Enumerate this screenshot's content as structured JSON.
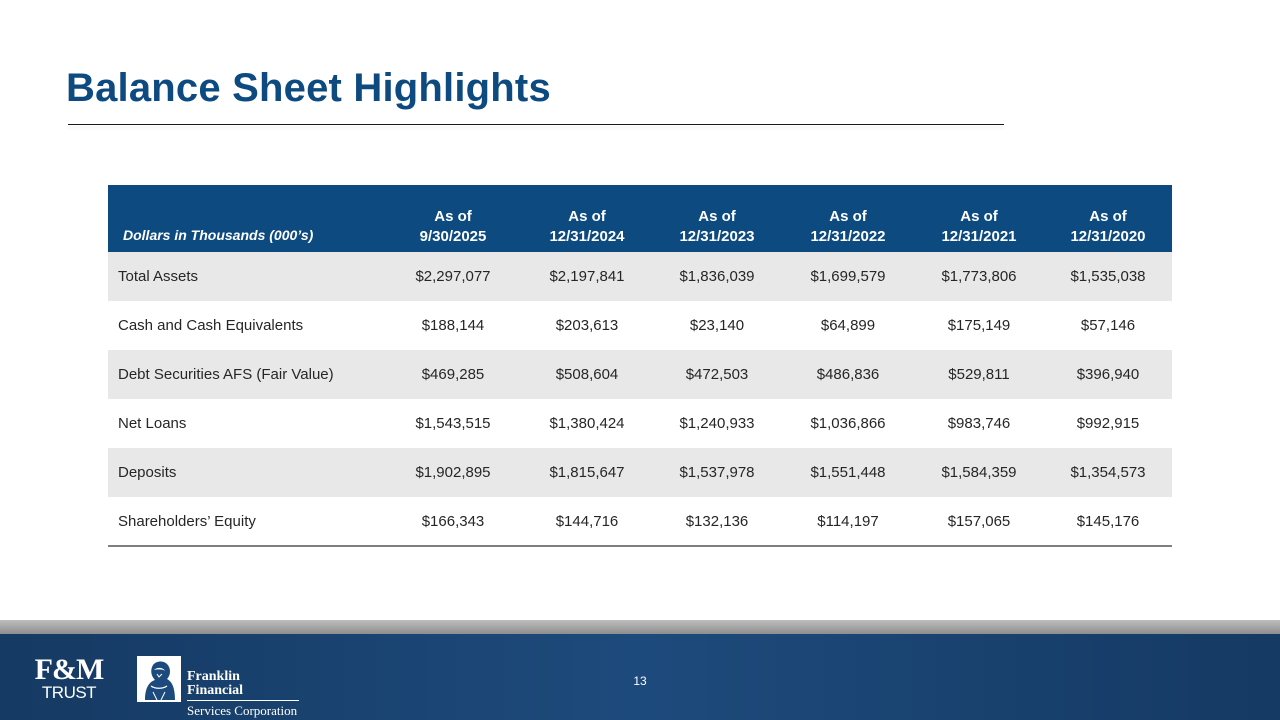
{
  "slide": {
    "title": "Balance Sheet Highlights",
    "page_number": "13"
  },
  "table": {
    "header_label": "Dollars in Thousands  (000’s)",
    "columns": [
      {
        "line1": "As of",
        "line2": "9/30/2025"
      },
      {
        "line1": "As of",
        "line2": "12/31/2024"
      },
      {
        "line1": "As of",
        "line2": "12/31/2023"
      },
      {
        "line1": "As of",
        "line2": "12/31/2022"
      },
      {
        "line1": "As of",
        "line2": "12/31/2021"
      },
      {
        "line1": "As of",
        "line2": "12/31/2020"
      }
    ],
    "rows": [
      {
        "label": "Total Assets",
        "values": [
          "$2,297,077",
          "$2,197,841",
          "$1,836,039",
          "$1,699,579",
          "$1,773,806",
          "$1,535,038"
        ]
      },
      {
        "label": "Cash and Cash Equivalents",
        "values": [
          "$188,144",
          "$203,613",
          "$23,140",
          "$64,899",
          "$175,149",
          "$57,146"
        ]
      },
      {
        "label": "Debt Securities AFS (Fair Value)",
        "values": [
          "$469,285",
          "$508,604",
          "$472,503",
          "$486,836",
          "$529,811",
          "$396,940"
        ]
      },
      {
        "label": "Net Loans",
        "values": [
          "$1,543,515",
          "$1,380,424",
          "$1,240,933",
          "$1,036,866",
          "$983,746",
          "$992,915"
        ]
      },
      {
        "label": "Deposits",
        "values": [
          "$1,902,895",
          "$1,815,647",
          "$1,537,978",
          "$1,551,448",
          "$1,584,359",
          "$1,354,573"
        ]
      },
      {
        "label": "Shareholders’ Equity",
        "values": [
          "$166,343",
          "$144,716",
          "$132,136",
          "$114,197",
          "$157,065",
          "$145,176"
        ]
      }
    ]
  },
  "footer": {
    "fm_logo": {
      "mark": "F&M",
      "word": "TRUST"
    },
    "ffsc_logo": {
      "line1": "Franklin Financial",
      "line2": "Services Corporation",
      "emblem": "franklin-portrait-icon"
    }
  },
  "colors": {
    "title": "#0d4a80",
    "header_bg": "#0d4a80",
    "row_shade": "#e8e8e8",
    "footer_bg": "#1d4a7c"
  }
}
